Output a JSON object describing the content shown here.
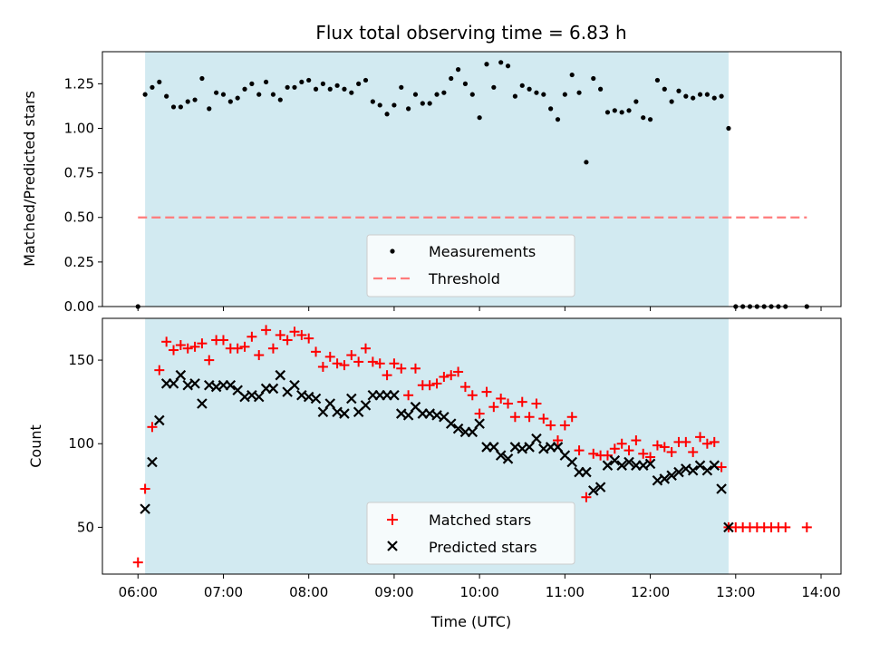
{
  "chart_data": {
    "type": "scatter",
    "title": "Flux total observing time = 6.83 h",
    "xlabel": "Time (UTC)",
    "x_ticks": [
      "06:00",
      "07:00",
      "08:00",
      "09:00",
      "10:00",
      "11:00",
      "12:00",
      "13:00",
      "14:00"
    ],
    "xlim": [
      "05:35",
      "14:14"
    ],
    "observing_window": [
      "06:05",
      "12:55"
    ],
    "colors": {
      "window": "#add8e6",
      "measurements": "#000000",
      "threshold": "#ff7b7b",
      "matched": "#ff0000",
      "predicted": "#000000"
    },
    "top_panel": {
      "ylabel": "Matched/Predicted stars",
      "ylim": [
        0,
        1.43
      ],
      "y_ticks": [
        "0.00",
        "0.25",
        "0.50",
        "0.75",
        "1.00",
        "1.25"
      ],
      "legend_position": "lower-center",
      "threshold": {
        "name": "Threshold",
        "value": 0.5,
        "x_range": [
          "06:00",
          "13:50"
        ]
      },
      "measurements": {
        "name": "Measurements",
        "points": [
          [
            "06:00",
            0.0
          ],
          [
            "06:05",
            1.19
          ],
          [
            "06:10",
            1.23
          ],
          [
            "06:15",
            1.26
          ],
          [
            "06:20",
            1.18
          ],
          [
            "06:25",
            1.12
          ],
          [
            "06:30",
            1.12
          ],
          [
            "06:35",
            1.15
          ],
          [
            "06:40",
            1.16
          ],
          [
            "06:45",
            1.28
          ],
          [
            "06:50",
            1.11
          ],
          [
            "06:55",
            1.2
          ],
          [
            "07:00",
            1.19
          ],
          [
            "07:05",
            1.15
          ],
          [
            "07:10",
            1.17
          ],
          [
            "07:15",
            1.22
          ],
          [
            "07:20",
            1.25
          ],
          [
            "07:25",
            1.19
          ],
          [
            "07:30",
            1.26
          ],
          [
            "07:35",
            1.19
          ],
          [
            "07:40",
            1.16
          ],
          [
            "07:45",
            1.23
          ],
          [
            "07:50",
            1.23
          ],
          [
            "07:55",
            1.26
          ],
          [
            "08:00",
            1.27
          ],
          [
            "08:05",
            1.22
          ],
          [
            "08:10",
            1.25
          ],
          [
            "08:15",
            1.22
          ],
          [
            "08:20",
            1.24
          ],
          [
            "08:25",
            1.22
          ],
          [
            "08:30",
            1.2
          ],
          [
            "08:35",
            1.25
          ],
          [
            "08:40",
            1.27
          ],
          [
            "08:45",
            1.15
          ],
          [
            "08:50",
            1.13
          ],
          [
            "08:55",
            1.08
          ],
          [
            "09:00",
            1.13
          ],
          [
            "09:05",
            1.23
          ],
          [
            "09:10",
            1.11
          ],
          [
            "09:15",
            1.19
          ],
          [
            "09:20",
            1.14
          ],
          [
            "09:25",
            1.14
          ],
          [
            "09:30",
            1.19
          ],
          [
            "09:35",
            1.2
          ],
          [
            "09:40",
            1.28
          ],
          [
            "09:45",
            1.33
          ],
          [
            "09:50",
            1.25
          ],
          [
            "09:55",
            1.19
          ],
          [
            "10:00",
            1.06
          ],
          [
            "10:05",
            1.36
          ],
          [
            "10:10",
            1.23
          ],
          [
            "10:15",
            1.37
          ],
          [
            "10:20",
            1.35
          ],
          [
            "10:25",
            1.18
          ],
          [
            "10:30",
            1.24
          ],
          [
            "10:35",
            1.22
          ],
          [
            "10:40",
            1.2
          ],
          [
            "10:45",
            1.19
          ],
          [
            "10:50",
            1.11
          ],
          [
            "10:55",
            1.05
          ],
          [
            "11:00",
            1.19
          ],
          [
            "11:05",
            1.3
          ],
          [
            "11:10",
            1.2
          ],
          [
            "11:15",
            0.81
          ],
          [
            "11:20",
            1.28
          ],
          [
            "11:25",
            1.22
          ],
          [
            "11:30",
            1.09
          ],
          [
            "11:35",
            1.1
          ],
          [
            "11:40",
            1.09
          ],
          [
            "11:45",
            1.1
          ],
          [
            "11:50",
            1.15
          ],
          [
            "11:55",
            1.06
          ],
          [
            "12:00",
            1.05
          ],
          [
            "12:05",
            1.27
          ],
          [
            "12:10",
            1.22
          ],
          [
            "12:15",
            1.15
          ],
          [
            "12:20",
            1.21
          ],
          [
            "12:25",
            1.18
          ],
          [
            "12:30",
            1.17
          ],
          [
            "12:35",
            1.19
          ],
          [
            "12:40",
            1.19
          ],
          [
            "12:45",
            1.17
          ],
          [
            "12:50",
            1.18
          ],
          [
            "12:55",
            1.0
          ],
          [
            "13:00",
            0.0
          ],
          [
            "13:05",
            0.0
          ],
          [
            "13:10",
            0.0
          ],
          [
            "13:15",
            0.0
          ],
          [
            "13:20",
            0.0
          ],
          [
            "13:25",
            0.0
          ],
          [
            "13:30",
            0.0
          ],
          [
            "13:35",
            0.0
          ],
          [
            "13:50",
            0.0
          ]
        ]
      }
    },
    "bottom_panel": {
      "ylabel": "Count",
      "ylim": [
        22,
        175
      ],
      "y_ticks": [
        "50",
        "100",
        "150"
      ],
      "legend_position": "lower-center",
      "series": [
        {
          "name": "Matched stars",
          "marker": "+",
          "points": [
            [
              "06:00",
              29
            ],
            [
              "06:05",
              73
            ],
            [
              "06:10",
              110
            ],
            [
              "06:15",
              144
            ],
            [
              "06:20",
              161
            ],
            [
              "06:25",
              156
            ],
            [
              "06:30",
              159
            ],
            [
              "06:35",
              157
            ],
            [
              "06:40",
              158
            ],
            [
              "06:45",
              160
            ],
            [
              "06:50",
              150
            ],
            [
              "06:55",
              162
            ],
            [
              "07:00",
              162
            ],
            [
              "07:05",
              157
            ],
            [
              "07:10",
              157
            ],
            [
              "07:15",
              158
            ],
            [
              "07:20",
              164
            ],
            [
              "07:25",
              153
            ],
            [
              "07:30",
              168
            ],
            [
              "07:35",
              157
            ],
            [
              "07:40",
              165
            ],
            [
              "07:45",
              162
            ],
            [
              "07:50",
              167
            ],
            [
              "07:55",
              165
            ],
            [
              "08:00",
              163
            ],
            [
              "08:05",
              155
            ],
            [
              "08:10",
              146
            ],
            [
              "08:15",
              152
            ],
            [
              "08:20",
              148
            ],
            [
              "08:25",
              147
            ],
            [
              "08:30",
              153
            ],
            [
              "08:35",
              149
            ],
            [
              "08:40",
              157
            ],
            [
              "08:45",
              149
            ],
            [
              "08:50",
              148
            ],
            [
              "08:55",
              141
            ],
            [
              "09:00",
              148
            ],
            [
              "09:05",
              145
            ],
            [
              "09:10",
              129
            ],
            [
              "09:15",
              145
            ],
            [
              "09:20",
              135
            ],
            [
              "09:25",
              135
            ],
            [
              "09:30",
              136
            ],
            [
              "09:35",
              140
            ],
            [
              "09:40",
              141
            ],
            [
              "09:45",
              143
            ],
            [
              "09:50",
              134
            ],
            [
              "09:55",
              129
            ],
            [
              "10:00",
              118
            ],
            [
              "10:05",
              131
            ],
            [
              "10:10",
              122
            ],
            [
              "10:15",
              127
            ],
            [
              "10:20",
              124
            ],
            [
              "10:25",
              116
            ],
            [
              "10:30",
              125
            ],
            [
              "10:35",
              116
            ],
            [
              "10:40",
              124
            ],
            [
              "10:45",
              115
            ],
            [
              "10:50",
              111
            ],
            [
              "10:55",
              102
            ],
            [
              "11:00",
              111
            ],
            [
              "11:05",
              116
            ],
            [
              "11:10",
              96
            ],
            [
              "11:15",
              68
            ],
            [
              "11:20",
              94
            ],
            [
              "11:25",
              93
            ],
            [
              "11:30",
              93
            ],
            [
              "11:35",
              97
            ],
            [
              "11:40",
              100
            ],
            [
              "11:45",
              96
            ],
            [
              "11:50",
              102
            ],
            [
              "11:55",
              94
            ],
            [
              "12:00",
              92
            ],
            [
              "12:05",
              99
            ],
            [
              "12:10",
              98
            ],
            [
              "12:15",
              95
            ],
            [
              "12:20",
              101
            ],
            [
              "12:25",
              101
            ],
            [
              "12:30",
              95
            ],
            [
              "12:35",
              104
            ],
            [
              "12:40",
              100
            ],
            [
              "12:45",
              101
            ],
            [
              "12:50",
              86
            ],
            [
              "12:55",
              50
            ],
            [
              "13:00",
              50
            ],
            [
              "13:05",
              50
            ],
            [
              "13:10",
              50
            ],
            [
              "13:15",
              50
            ],
            [
              "13:20",
              50
            ],
            [
              "13:25",
              50
            ],
            [
              "13:30",
              50
            ],
            [
              "13:35",
              50
            ],
            [
              "13:50",
              50
            ]
          ]
        },
        {
          "name": "Predicted stars",
          "marker": "x",
          "points": [
            [
              "06:05",
              61
            ],
            [
              "06:10",
              89
            ],
            [
              "06:15",
              114
            ],
            [
              "06:20",
              136
            ],
            [
              "06:25",
              136
            ],
            [
              "06:30",
              141
            ],
            [
              "06:35",
              135
            ],
            [
              "06:40",
              136
            ],
            [
              "06:45",
              124
            ],
            [
              "06:50",
              135
            ],
            [
              "06:55",
              134
            ],
            [
              "07:00",
              135
            ],
            [
              "07:05",
              135
            ],
            [
              "07:10",
              132
            ],
            [
              "07:15",
              128
            ],
            [
              "07:20",
              129
            ],
            [
              "07:25",
              128
            ],
            [
              "07:30",
              133
            ],
            [
              "07:35",
              133
            ],
            [
              "07:40",
              141
            ],
            [
              "07:45",
              131
            ],
            [
              "07:50",
              135
            ],
            [
              "07:55",
              129
            ],
            [
              "08:00",
              128
            ],
            [
              "08:05",
              127
            ],
            [
              "08:10",
              119
            ],
            [
              "08:15",
              124
            ],
            [
              "08:20",
              119
            ],
            [
              "08:25",
              118
            ],
            [
              "08:30",
              127
            ],
            [
              "08:35",
              119
            ],
            [
              "08:40",
              123
            ],
            [
              "08:45",
              129
            ],
            [
              "08:50",
              129
            ],
            [
              "08:55",
              129
            ],
            [
              "09:00",
              129
            ],
            [
              "09:05",
              118
            ],
            [
              "09:10",
              117
            ],
            [
              "09:15",
              122
            ],
            [
              "09:20",
              118
            ],
            [
              "09:25",
              118
            ],
            [
              "09:30",
              117
            ],
            [
              "09:35",
              116
            ],
            [
              "09:40",
              112
            ],
            [
              "09:45",
              109
            ],
            [
              "09:50",
              107
            ],
            [
              "09:55",
              107
            ],
            [
              "10:00",
              112
            ],
            [
              "10:05",
              98
            ],
            [
              "10:10",
              98
            ],
            [
              "10:15",
              93
            ],
            [
              "10:20",
              91
            ],
            [
              "10:25",
              98
            ],
            [
              "10:30",
              97
            ],
            [
              "10:35",
              98
            ],
            [
              "10:40",
              103
            ],
            [
              "10:45",
              97
            ],
            [
              "10:50",
              98
            ],
            [
              "10:55",
              98
            ],
            [
              "11:00",
              93
            ],
            [
              "11:05",
              89
            ],
            [
              "11:10",
              83
            ],
            [
              "11:15",
              83
            ],
            [
              "11:20",
              72
            ],
            [
              "11:25",
              74
            ],
            [
              "11:30",
              87
            ],
            [
              "11:35",
              90
            ],
            [
              "11:40",
              87
            ],
            [
              "11:45",
              89
            ],
            [
              "11:50",
              87
            ],
            [
              "11:55",
              87
            ],
            [
              "12:00",
              88
            ],
            [
              "12:05",
              78
            ],
            [
              "12:10",
              79
            ],
            [
              "12:15",
              81
            ],
            [
              "12:20",
              83
            ],
            [
              "12:25",
              85
            ],
            [
              "12:30",
              84
            ],
            [
              "12:35",
              87
            ],
            [
              "12:40",
              84
            ],
            [
              "12:45",
              87
            ],
            [
              "12:50",
              73
            ],
            [
              "12:55",
              50
            ]
          ]
        }
      ]
    }
  }
}
